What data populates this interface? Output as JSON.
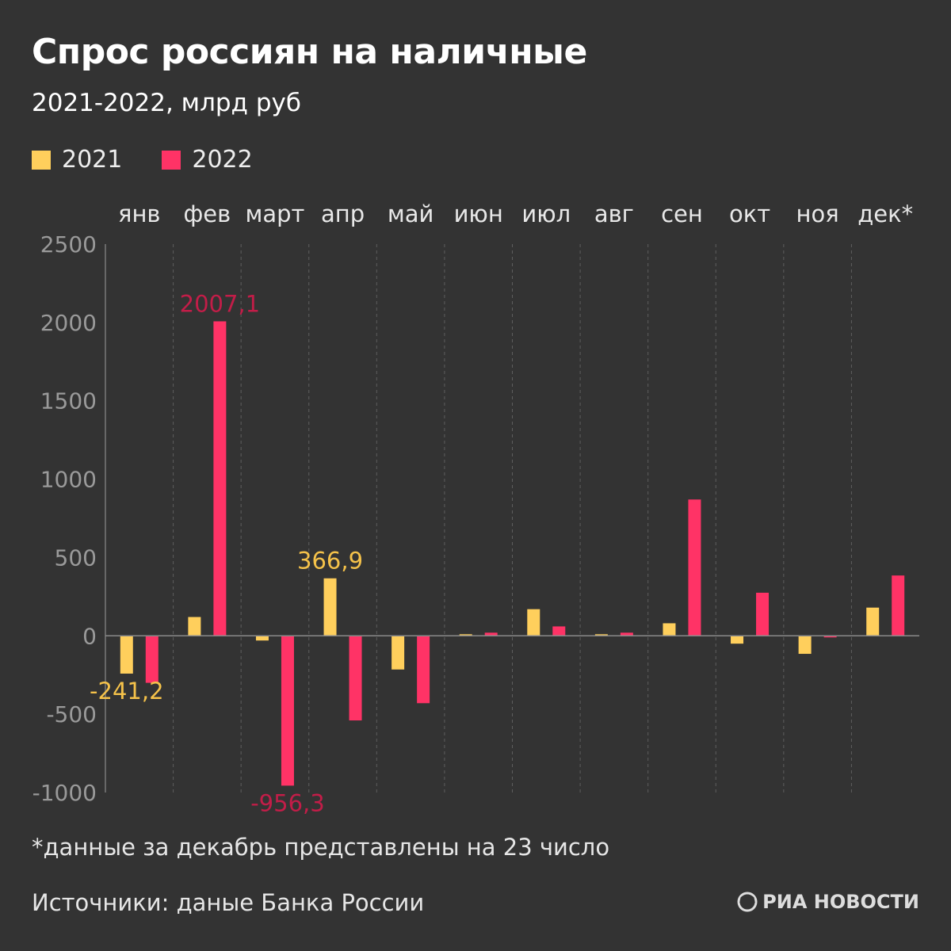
{
  "header": {
    "title": "Спрос россиян на наличные",
    "subtitle": "2021-2022, млрд руб"
  },
  "legend": {
    "items": [
      {
        "label": "2021",
        "color": "#ffcf5c"
      },
      {
        "label": "2022",
        "color": "#ff3366"
      }
    ]
  },
  "footer": {
    "footnote": "*данные за декабрь представлены на 23 число",
    "source": "Источники: даные Банка России",
    "brand": "РИА НОВОСТИ",
    "brand_icon": "ria-logo-icon"
  },
  "colors": {
    "background": "#333333",
    "series_2021": "#ffcf5c",
    "series_2022": "#ff3366",
    "label_2022": "#c21d48",
    "label_2021": "#f5c24a"
  },
  "chart_data": {
    "type": "bar",
    "title": "Спрос россиян на наличные",
    "subtitle": "2021-2022, млрд руб",
    "categories": [
      "янв",
      "фев",
      "март",
      "апр",
      "май",
      "июн",
      "июл",
      "авг",
      "сен",
      "окт",
      "ноя",
      "дек*"
    ],
    "series": [
      {
        "name": "2021",
        "values": [
          -241.2,
          120,
          -30,
          366.9,
          -215,
          10,
          170,
          10,
          80,
          -50,
          -115,
          180
        ]
      },
      {
        "name": "2022",
        "values": [
          -300,
          2007.1,
          -956.3,
          -540,
          -430,
          20,
          60,
          20,
          870,
          275,
          -10,
          385
        ]
      }
    ],
    "yticks": [
      2500,
      2000,
      1500,
      1000,
      500,
      0,
      -500,
      -1000
    ],
    "ylim": [
      -1000,
      2500
    ],
    "grid": "vertical-dashed",
    "annotations": [
      {
        "series": "2021",
        "category": "янв",
        "text": "-241,2"
      },
      {
        "series": "2022",
        "category": "фев",
        "text": "2007,1"
      },
      {
        "series": "2022",
        "category": "март",
        "text": "-956,3"
      },
      {
        "series": "2021",
        "category": "апр",
        "text": "366,9"
      }
    ]
  }
}
